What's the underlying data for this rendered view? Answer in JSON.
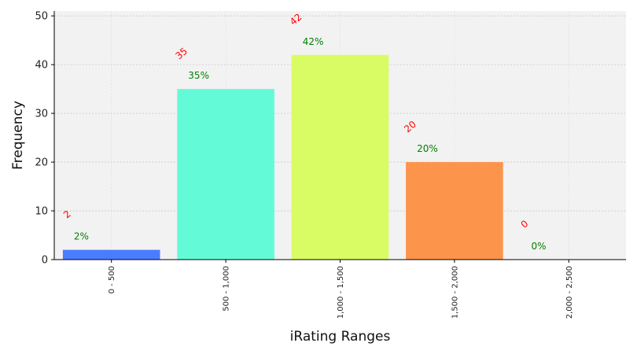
{
  "chart_data": {
    "type": "bar",
    "xlabel": "iRating Ranges",
    "ylabel": "Frequency",
    "categories": [
      "0 - 500",
      "500 - 1,000",
      "1,000 - 1,500",
      "1,500 - 2,000",
      "2,000 - 2,500"
    ],
    "values": [
      2,
      35,
      42,
      20,
      0
    ],
    "count_labels": [
      "2",
      "35",
      "42",
      "20",
      "0"
    ],
    "percent_labels": [
      "2%",
      "35%",
      "42%",
      "20%",
      "0%"
    ],
    "bar_colors": [
      "#4a7cff",
      "#63fbd7",
      "#d9fc64",
      "#fd944b",
      "#8b1a1a"
    ],
    "ylim": [
      0,
      51
    ],
    "yticks": [
      0,
      10,
      20,
      30,
      40,
      50
    ],
    "grid": true,
    "plot_background": "#f2f2f2",
    "count_label_color": "#ff0000",
    "percent_label_color": "#008000"
  }
}
